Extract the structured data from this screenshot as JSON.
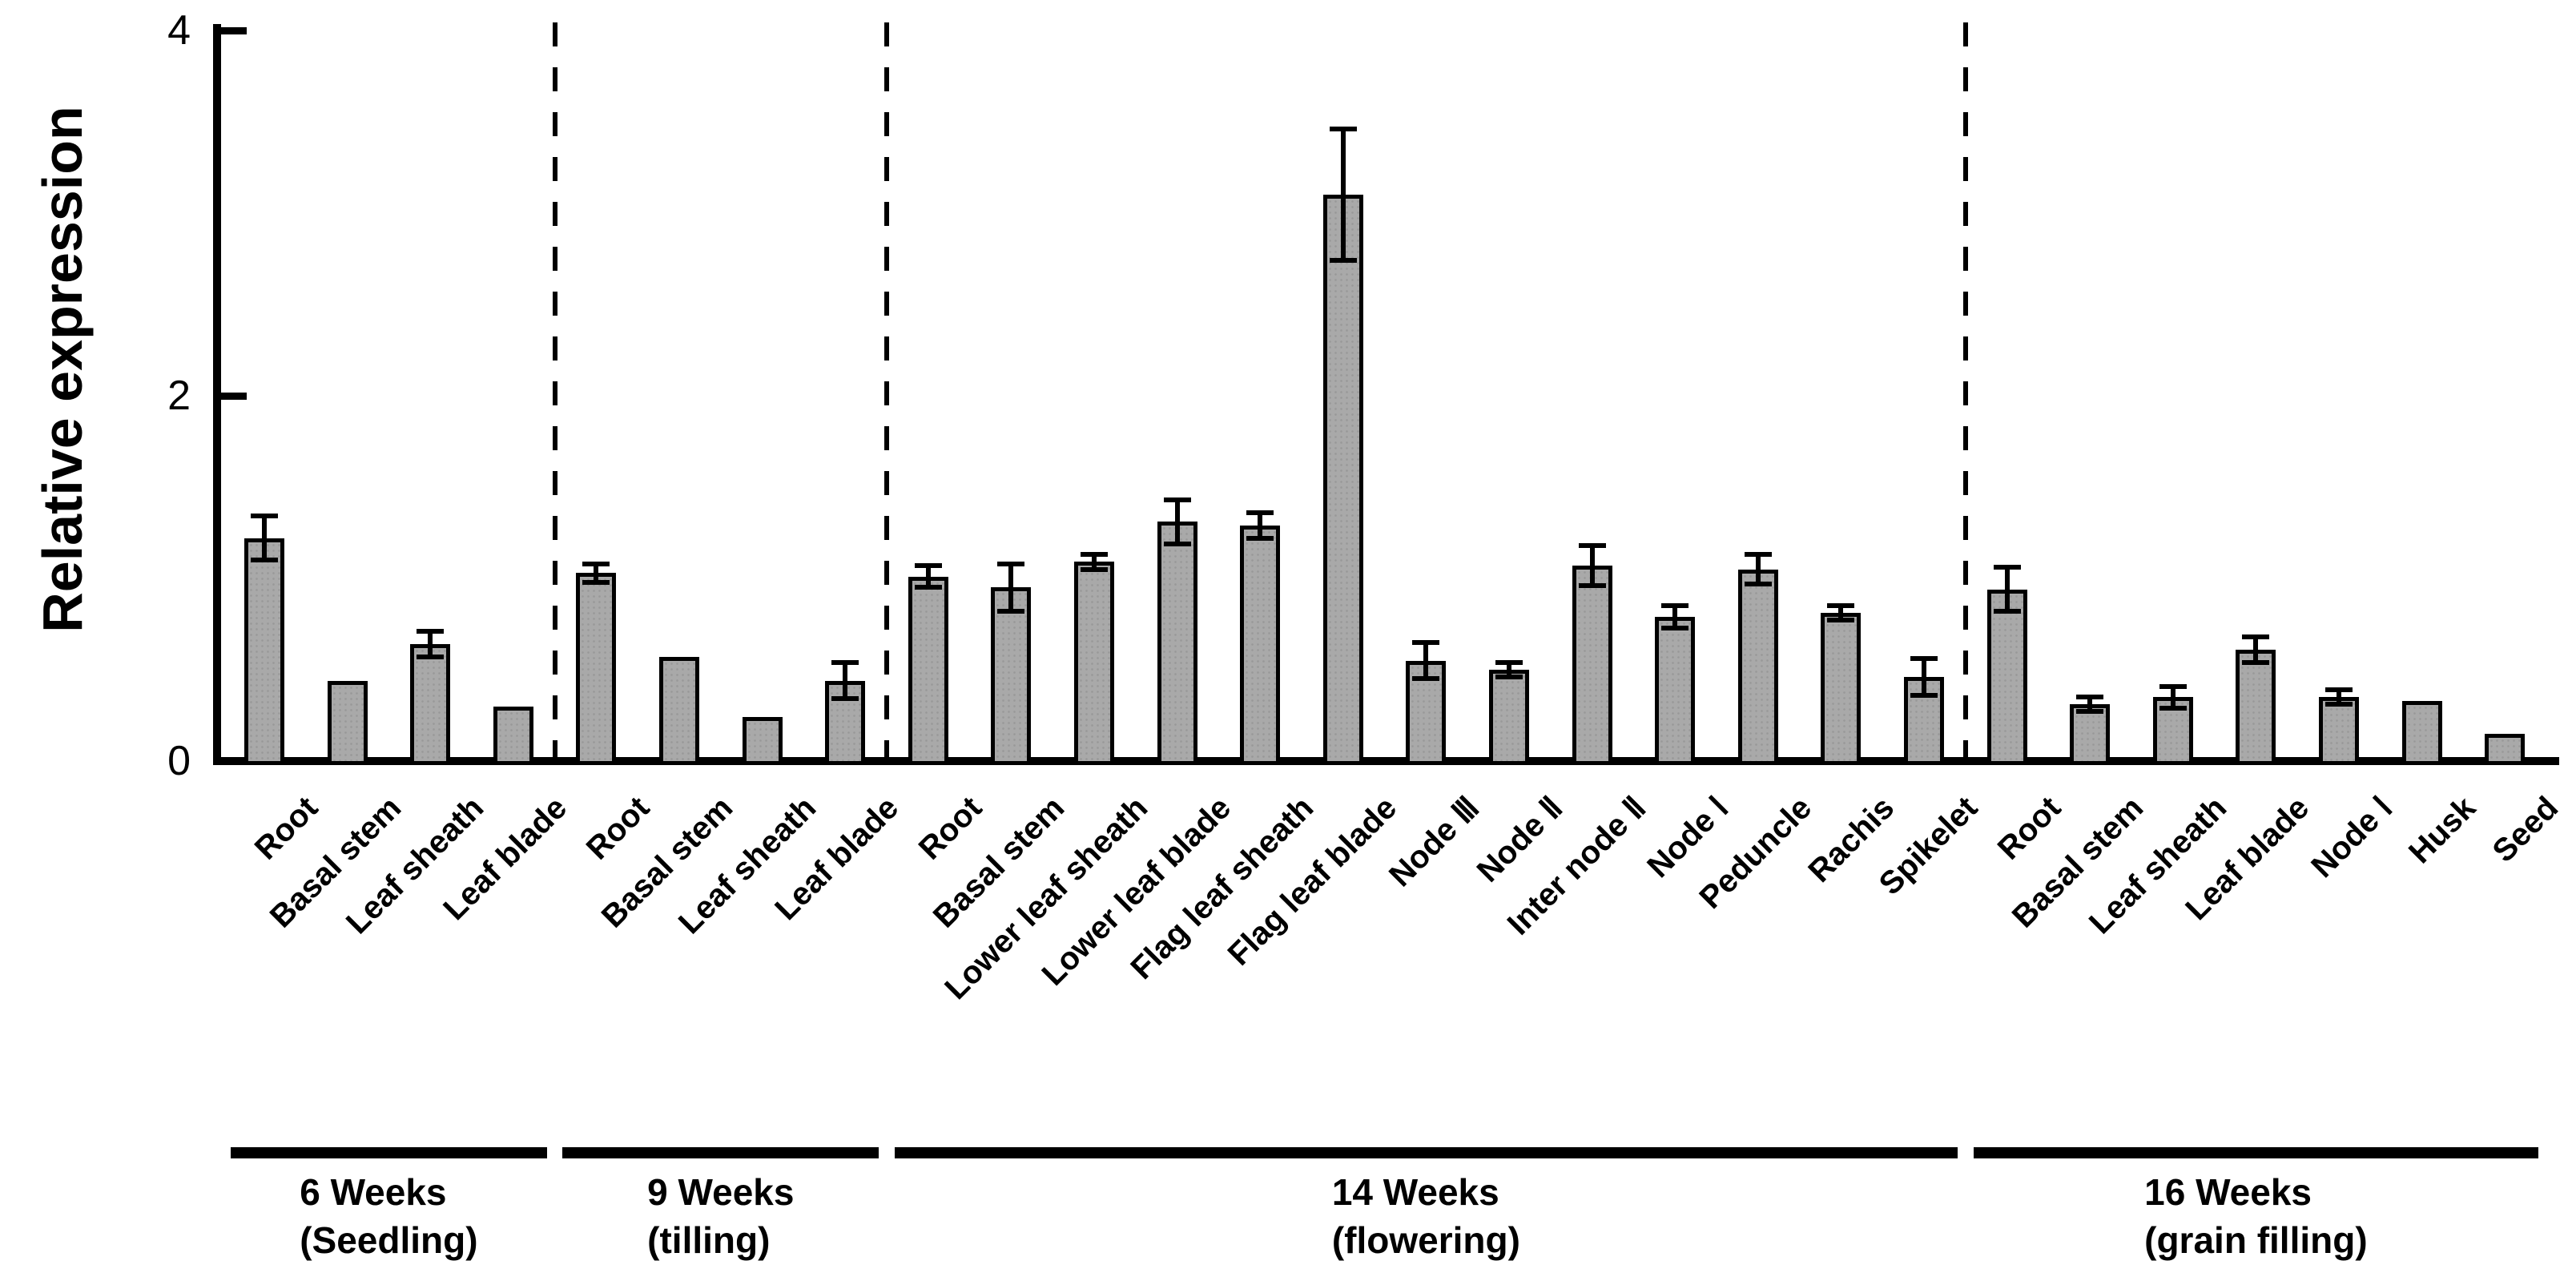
{
  "chart_data": {
    "type": "bar",
    "title": "",
    "ylabel": "Relative expression",
    "ylim": [
      0,
      4
    ],
    "yticks": [
      0,
      2,
      4
    ],
    "grid": false,
    "legend_position": "none",
    "bar_color": "#a9a9a9",
    "bar_border_color": "#000000",
    "error_bar_color": "#000000",
    "separator_style": "dashed-vertical",
    "groups": [
      {
        "stage": "6 Weeks",
        "stage_sub": "(Seedling)",
        "bars": [
          {
            "tissue": "Root",
            "value": 1.22,
            "error": 0.12
          },
          {
            "tissue": "Basal stem",
            "value": 0.44,
            "error": null
          },
          {
            "tissue": "Leaf sheath",
            "value": 0.64,
            "error": 0.07
          },
          {
            "tissue": "Leaf blade",
            "value": 0.3,
            "error": null
          }
        ]
      },
      {
        "stage": "9 Weeks",
        "stage_sub": "(tilling)",
        "bars": [
          {
            "tissue": "Root",
            "value": 1.03,
            "error": 0.05
          },
          {
            "tissue": "Basal stem",
            "value": 0.57,
            "error": null
          },
          {
            "tissue": "Leaf sheath",
            "value": 0.24,
            "error": null
          },
          {
            "tissue": "Leaf blade",
            "value": 0.44,
            "error": 0.1
          }
        ]
      },
      {
        "stage": "14 Weeks",
        "stage_sub": "(flowering)",
        "bars": [
          {
            "tissue": "Root",
            "value": 1.01,
            "error": 0.06
          },
          {
            "tissue": "Basal stem",
            "value": 0.95,
            "error": 0.13
          },
          {
            "tissue": "Lower leaf sheath",
            "value": 1.09,
            "error": 0.04
          },
          {
            "tissue": "Lower leaf blade",
            "value": 1.31,
            "error": 0.12
          },
          {
            "tissue": "Flag leaf sheath",
            "value": 1.29,
            "error": 0.07
          },
          {
            "tissue": "Flag leaf blade",
            "value": 3.1,
            "error": 0.36
          },
          {
            "tissue": "Node Ⅲ",
            "value": 0.55,
            "error": 0.1
          },
          {
            "tissue": "Node Ⅱ",
            "value": 0.5,
            "error": 0.04
          },
          {
            "tissue": "Inter node Ⅱ",
            "value": 1.07,
            "error": 0.11
          },
          {
            "tissue": "Node Ⅰ",
            "value": 0.79,
            "error": 0.06
          },
          {
            "tissue": "Peduncle",
            "value": 1.05,
            "error": 0.08
          },
          {
            "tissue": "Rachis",
            "value": 0.81,
            "error": 0.04
          },
          {
            "tissue": "Spikelet",
            "value": 0.46,
            "error": 0.1
          }
        ]
      },
      {
        "stage": "16 Weeks",
        "stage_sub": "(grain filling)",
        "bars": [
          {
            "tissue": "Root",
            "value": 0.94,
            "error": 0.12
          },
          {
            "tissue": "Basal stem",
            "value": 0.31,
            "error": 0.04
          },
          {
            "tissue": "Leaf sheath",
            "value": 0.35,
            "error": 0.06
          },
          {
            "tissue": "Leaf blade",
            "value": 0.61,
            "error": 0.07
          },
          {
            "tissue": "Node Ⅰ",
            "value": 0.35,
            "error": 0.04
          },
          {
            "tissue": "Husk",
            "value": 0.33,
            "error": null
          },
          {
            "tissue": "Seed",
            "value": 0.15,
            "error": null
          }
        ]
      }
    ]
  }
}
